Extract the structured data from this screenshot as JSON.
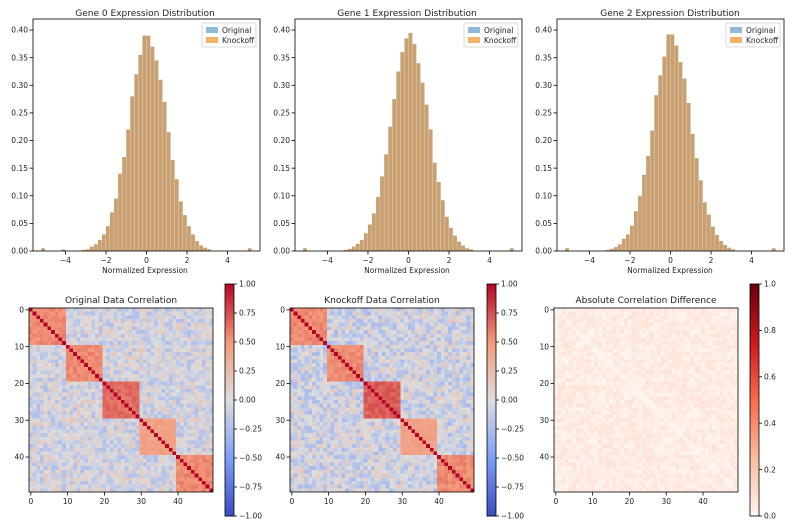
{
  "figure": {
    "background": "#ffffff",
    "colors": {
      "original": "#8fbbd9",
      "knockoff": "#f5b26b",
      "overlap": "#c8a072"
    }
  },
  "chart_data": [
    {
      "type": "histogram",
      "title": "Gene 0 Expression Distribution",
      "xlabel": "Normalized Expression",
      "ylabel": "",
      "xlim": [
        -5.6,
        5.6
      ],
      "ylim": [
        0,
        0.42
      ],
      "xticks": [
        -4,
        -2,
        0,
        2,
        4
      ],
      "xtick_labels": [
        "−4",
        "−2",
        "0",
        "2",
        "4"
      ],
      "yticks": [
        0.0,
        0.05,
        0.1,
        0.15,
        0.2,
        0.25,
        0.3,
        0.35,
        0.4
      ],
      "ytick_labels": [
        "0.00",
        "0.05",
        "0.10",
        "0.15",
        "0.20",
        "0.25",
        "0.30",
        "0.35",
        "0.40"
      ],
      "legend": [
        "Original",
        "Knockoff"
      ],
      "legend_position": "upper right",
      "bin_width": 0.2,
      "bins": [
        {
          "x0": -5.2,
          "h": 0.005
        },
        {
          "x0": -4.2,
          "h": 0.003
        },
        {
          "x0": -3.2,
          "h": 0.002
        },
        {
          "x0": -3.0,
          "h": 0.003
        },
        {
          "x0": -2.8,
          "h": 0.008
        },
        {
          "x0": -2.6,
          "h": 0.012
        },
        {
          "x0": -2.4,
          "h": 0.02
        },
        {
          "x0": -2.2,
          "h": 0.03
        },
        {
          "x0": -2.0,
          "h": 0.045
        },
        {
          "x0": -1.8,
          "h": 0.07
        },
        {
          "x0": -1.6,
          "h": 0.095
        },
        {
          "x0": -1.4,
          "h": 0.14
        },
        {
          "x0": -1.2,
          "h": 0.17
        },
        {
          "x0": -1.0,
          "h": 0.22
        },
        {
          "x0": -0.8,
          "h": 0.28
        },
        {
          "x0": -0.6,
          "h": 0.32
        },
        {
          "x0": -0.4,
          "h": 0.355
        },
        {
          "x0": -0.2,
          "h": 0.39
        },
        {
          "x0": 0.0,
          "h": 0.39
        },
        {
          "x0": 0.2,
          "h": 0.37
        },
        {
          "x0": 0.4,
          "h": 0.345
        },
        {
          "x0": 0.6,
          "h": 0.31
        },
        {
          "x0": 0.8,
          "h": 0.27
        },
        {
          "x0": 1.0,
          "h": 0.215
        },
        {
          "x0": 1.2,
          "h": 0.165
        },
        {
          "x0": 1.4,
          "h": 0.13
        },
        {
          "x0": 1.6,
          "h": 0.09
        },
        {
          "x0": 1.8,
          "h": 0.065
        },
        {
          "x0": 2.0,
          "h": 0.045
        },
        {
          "x0": 2.2,
          "h": 0.03
        },
        {
          "x0": 2.4,
          "h": 0.018
        },
        {
          "x0": 2.6,
          "h": 0.01
        },
        {
          "x0": 2.8,
          "h": 0.006
        },
        {
          "x0": 3.0,
          "h": 0.003
        },
        {
          "x0": 5.0,
          "h": 0.005
        }
      ]
    },
    {
      "type": "histogram",
      "title": "Gene 1 Expression Distribution",
      "xlabel": "Normalized Expression",
      "ylabel": "",
      "xlim": [
        -5.6,
        5.6
      ],
      "ylim": [
        0,
        0.42
      ],
      "xticks": [
        -4,
        -2,
        0,
        2,
        4
      ],
      "xtick_labels": [
        "−4",
        "−2",
        "0",
        "2",
        "4"
      ],
      "yticks": [
        0.0,
        0.05,
        0.1,
        0.15,
        0.2,
        0.25,
        0.3,
        0.35,
        0.4
      ],
      "ytick_labels": [
        "0.00",
        "0.05",
        "0.10",
        "0.15",
        "0.20",
        "0.25",
        "0.30",
        "0.35",
        "0.40"
      ],
      "legend": [
        "Original",
        "Knockoff"
      ],
      "legend_position": "upper right",
      "bin_width": 0.2,
      "bins": [
        {
          "x0": -5.2,
          "h": 0.005
        },
        {
          "x0": -3.2,
          "h": 0.002
        },
        {
          "x0": -3.0,
          "h": 0.004
        },
        {
          "x0": -2.8,
          "h": 0.008
        },
        {
          "x0": -2.6,
          "h": 0.013
        },
        {
          "x0": -2.4,
          "h": 0.02
        },
        {
          "x0": -2.2,
          "h": 0.032
        },
        {
          "x0": -2.0,
          "h": 0.048
        },
        {
          "x0": -1.8,
          "h": 0.068
        },
        {
          "x0": -1.6,
          "h": 0.098
        },
        {
          "x0": -1.4,
          "h": 0.135
        },
        {
          "x0": -1.2,
          "h": 0.175
        },
        {
          "x0": -1.0,
          "h": 0.225
        },
        {
          "x0": -0.8,
          "h": 0.275
        },
        {
          "x0": -0.6,
          "h": 0.325
        },
        {
          "x0": -0.4,
          "h": 0.36
        },
        {
          "x0": -0.2,
          "h": 0.385
        },
        {
          "x0": 0.0,
          "h": 0.395
        },
        {
          "x0": 0.2,
          "h": 0.375
        },
        {
          "x0": 0.4,
          "h": 0.34
        },
        {
          "x0": 0.6,
          "h": 0.305
        },
        {
          "x0": 0.8,
          "h": 0.265
        },
        {
          "x0": 1.0,
          "h": 0.22
        },
        {
          "x0": 1.2,
          "h": 0.16
        },
        {
          "x0": 1.4,
          "h": 0.125
        },
        {
          "x0": 1.6,
          "h": 0.092
        },
        {
          "x0": 1.8,
          "h": 0.062
        },
        {
          "x0": 2.0,
          "h": 0.042
        },
        {
          "x0": 2.2,
          "h": 0.028
        },
        {
          "x0": 2.4,
          "h": 0.017
        },
        {
          "x0": 2.6,
          "h": 0.01
        },
        {
          "x0": 2.8,
          "h": 0.005
        },
        {
          "x0": 3.0,
          "h": 0.003
        },
        {
          "x0": 5.0,
          "h": 0.005
        }
      ]
    },
    {
      "type": "histogram",
      "title": "Gene 2 Expression Distribution",
      "xlabel": "Normalized Expression",
      "ylabel": "",
      "xlim": [
        -5.6,
        5.6
      ],
      "ylim": [
        0,
        0.42
      ],
      "xticks": [
        -4,
        -2,
        0,
        2,
        4
      ],
      "xtick_labels": [
        "−4",
        "−2",
        "0",
        "2",
        "4"
      ],
      "yticks": [
        0.0,
        0.05,
        0.1,
        0.15,
        0.2,
        0.25,
        0.3,
        0.35,
        0.4
      ],
      "ytick_labels": [
        "0.00",
        "0.05",
        "0.10",
        "0.15",
        "0.20",
        "0.25",
        "0.30",
        "0.35",
        "0.40"
      ],
      "legend": [
        "Original",
        "Knockoff"
      ],
      "legend_position": "upper right",
      "bin_width": 0.2,
      "bins": [
        {
          "x0": -5.2,
          "h": 0.005
        },
        {
          "x0": -3.2,
          "h": 0.002
        },
        {
          "x0": -3.0,
          "h": 0.004
        },
        {
          "x0": -2.8,
          "h": 0.007
        },
        {
          "x0": -2.6,
          "h": 0.012
        },
        {
          "x0": -2.4,
          "h": 0.022
        },
        {
          "x0": -2.2,
          "h": 0.03
        },
        {
          "x0": -2.0,
          "h": 0.046
        },
        {
          "x0": -1.8,
          "h": 0.072
        },
        {
          "x0": -1.6,
          "h": 0.1
        },
        {
          "x0": -1.4,
          "h": 0.138
        },
        {
          "x0": -1.2,
          "h": 0.172
        },
        {
          "x0": -1.0,
          "h": 0.218
        },
        {
          "x0": -0.8,
          "h": 0.282
        },
        {
          "x0": -0.6,
          "h": 0.318
        },
        {
          "x0": -0.4,
          "h": 0.352
        },
        {
          "x0": -0.2,
          "h": 0.392
        },
        {
          "x0": 0.0,
          "h": 0.392
        },
        {
          "x0": 0.2,
          "h": 0.372
        },
        {
          "x0": 0.4,
          "h": 0.342
        },
        {
          "x0": 0.6,
          "h": 0.312
        },
        {
          "x0": 0.8,
          "h": 0.268
        },
        {
          "x0": 1.0,
          "h": 0.212
        },
        {
          "x0": 1.2,
          "h": 0.168
        },
        {
          "x0": 1.4,
          "h": 0.128
        },
        {
          "x0": 1.6,
          "h": 0.088
        },
        {
          "x0": 1.8,
          "h": 0.066
        },
        {
          "x0": 2.0,
          "h": 0.044
        },
        {
          "x0": 2.2,
          "h": 0.029
        },
        {
          "x0": 2.4,
          "h": 0.018
        },
        {
          "x0": 2.6,
          "h": 0.011
        },
        {
          "x0": 2.8,
          "h": 0.006
        },
        {
          "x0": 3.0,
          "h": 0.003
        },
        {
          "x0": 5.0,
          "h": 0.005
        }
      ]
    },
    {
      "type": "heatmap",
      "title": "Original Data Correlation",
      "n": 50,
      "ticks": [
        0,
        10,
        20,
        30,
        40
      ],
      "tick_labels": [
        "0",
        "10",
        "20",
        "30",
        "40"
      ],
      "colormap": "coolwarm",
      "vmin": -1.0,
      "vmax": 1.0,
      "colorbar_ticks": [
        1.0,
        0.75,
        0.5,
        0.25,
        0.0,
        -0.25,
        -0.5,
        -0.75,
        -1.0
      ],
      "colorbar_labels": [
        "1.00",
        "0.75",
        "0.50",
        "0.25",
        "0.00",
        "−0.25",
        "−0.50",
        "−0.75",
        "−1.00"
      ],
      "blocks": [
        {
          "start": 0,
          "end": 9,
          "within_corr": 0.55
        },
        {
          "start": 10,
          "end": 19,
          "within_corr": 0.55
        },
        {
          "start": 20,
          "end": 29,
          "within_corr": 0.65
        },
        {
          "start": 30,
          "end": 39,
          "within_corr": 0.45
        },
        {
          "start": 40,
          "end": 49,
          "within_corr": 0.55
        }
      ],
      "diagonal": 1.0,
      "off_block_range": [
        -0.25,
        0.15
      ],
      "seed": 11
    },
    {
      "type": "heatmap",
      "title": "Knockoff Data Correlation",
      "n": 50,
      "ticks": [
        0,
        10,
        20,
        30,
        40
      ],
      "tick_labels": [
        "0",
        "10",
        "20",
        "30",
        "40"
      ],
      "colormap": "coolwarm",
      "vmin": -1.0,
      "vmax": 1.0,
      "colorbar_ticks": [
        1.0,
        0.75,
        0.5,
        0.25,
        0.0,
        -0.25,
        -0.5,
        -0.75,
        -1.0
      ],
      "colorbar_labels": [
        "1.00",
        "0.75",
        "0.50",
        "0.25",
        "0.00",
        "−0.25",
        "−0.50",
        "−0.75",
        "−1.00"
      ],
      "blocks": [
        {
          "start": 0,
          "end": 9,
          "within_corr": 0.55
        },
        {
          "start": 10,
          "end": 19,
          "within_corr": 0.55
        },
        {
          "start": 20,
          "end": 29,
          "within_corr": 0.7
        },
        {
          "start": 30,
          "end": 39,
          "within_corr": 0.45
        },
        {
          "start": 40,
          "end": 49,
          "within_corr": 0.55
        }
      ],
      "diagonal": 1.0,
      "off_block_range": [
        -0.28,
        0.15
      ],
      "seed": 23
    },
    {
      "type": "heatmap",
      "title": "Absolute Correlation Difference",
      "n": 50,
      "ticks": [
        0,
        10,
        20,
        30,
        40
      ],
      "tick_labels": [
        "0",
        "10",
        "20",
        "30",
        "40"
      ],
      "colormap": "Reds",
      "vmin": 0.0,
      "vmax": 1.0,
      "colorbar_ticks": [
        1.0,
        0.8,
        0.6,
        0.4,
        0.2,
        0.0
      ],
      "colorbar_labels": [
        "1.0",
        "0.8",
        "0.6",
        "0.4",
        "0.2",
        "0.0"
      ],
      "blocks": [],
      "diagonal": 0.0,
      "off_block_range": [
        0.0,
        0.08
      ],
      "seed": 37
    }
  ]
}
